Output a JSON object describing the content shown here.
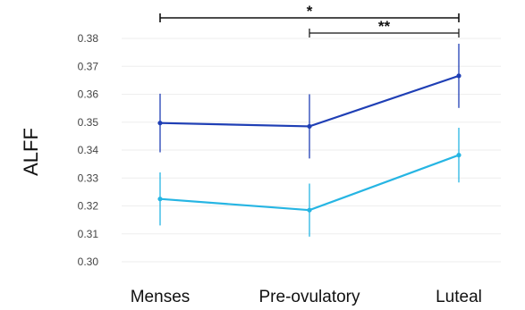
{
  "chart_data": {
    "type": "line",
    "title": "",
    "xlabel": "",
    "ylabel": "ALFF",
    "categories": [
      "Menses",
      "Pre-ovulatory",
      "Luteal"
    ],
    "ylim": [
      0.3,
      0.38
    ],
    "yticks": [
      "0.30",
      "0.31",
      "0.32",
      "0.33",
      "0.34",
      "0.35",
      "0.36",
      "0.37",
      "0.38"
    ],
    "grid": true,
    "series": [
      {
        "values": [
          0.3497,
          0.3485,
          0.3666
        ],
        "error": [
          0.0105,
          0.0115,
          0.0115
        ],
        "color": "#1f3fb5"
      },
      {
        "values": [
          0.3225,
          0.3185,
          0.3382
        ],
        "error": [
          0.0095,
          0.0095,
          0.0098
        ],
        "color": "#26b5e3"
      }
    ],
    "annotations": [
      {
        "label": "*",
        "from": "Menses",
        "to": "Luteal"
      },
      {
        "label": "**",
        "from": "Pre-ovulatory",
        "to": "Luteal"
      }
    ]
  }
}
